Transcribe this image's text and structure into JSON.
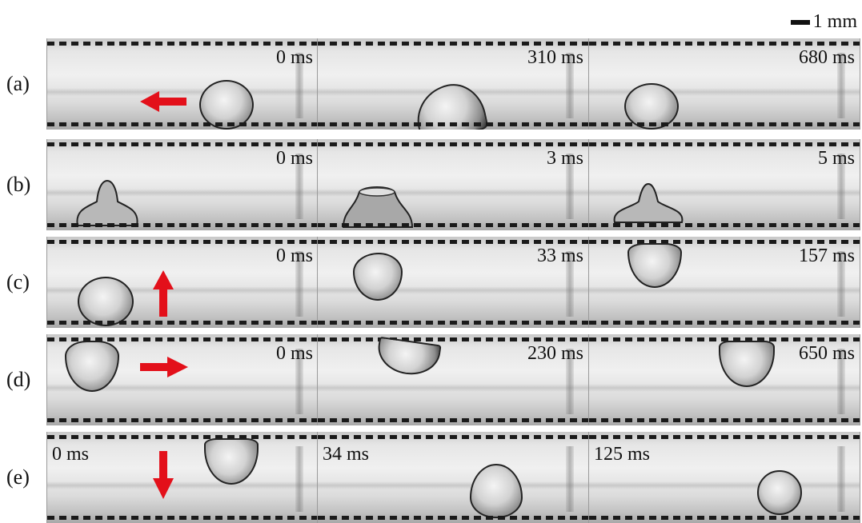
{
  "scale": {
    "label": "1 mm"
  },
  "rows": [
    {
      "label": "(a)",
      "times": [
        "0 ms",
        "310 ms",
        "680 ms"
      ],
      "arrow_direction": "left"
    },
    {
      "label": "(b)",
      "times": [
        "0 ms",
        "3 ms",
        "5 ms"
      ],
      "arrow_direction": "none"
    },
    {
      "label": "(c)",
      "times": [
        "0 ms",
        "33 ms",
        "157 ms"
      ],
      "arrow_direction": "up"
    },
    {
      "label": "(d)",
      "times": [
        "0 ms",
        "230 ms",
        "650 ms"
      ],
      "arrow_direction": "right"
    },
    {
      "label": "(e)",
      "times": [
        "0 ms",
        "34 ms",
        "125 ms"
      ],
      "arrow_direction": "down"
    }
  ],
  "colors": {
    "arrow": "#e3101a",
    "text": "#111111"
  }
}
